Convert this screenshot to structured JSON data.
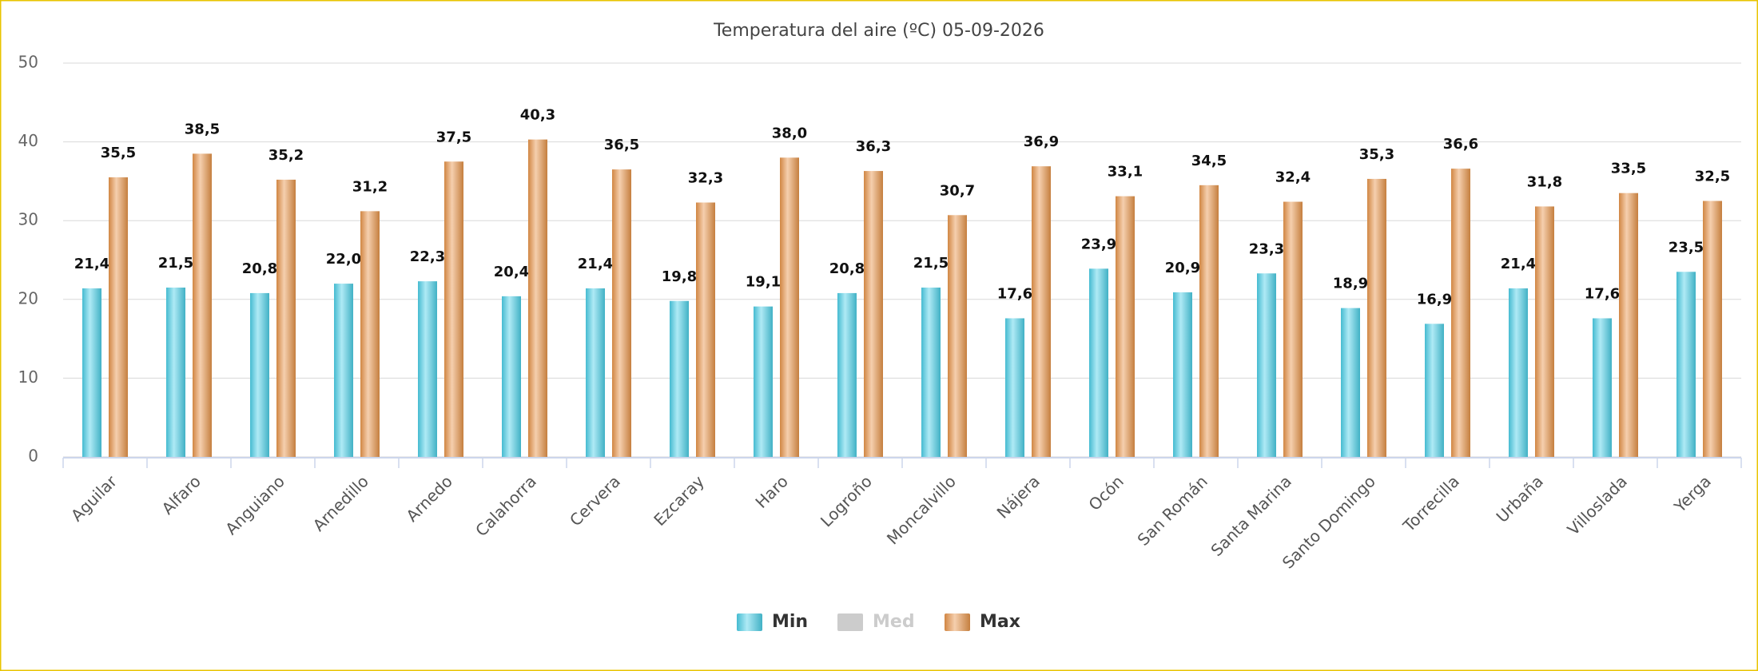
{
  "chart_data": {
    "type": "bar",
    "title": "Temperatura del aire (ºC) 05-09-2026",
    "categories": [
      "Aguilar",
      "Alfaro",
      "Anguiano",
      "Arnedillo",
      "Arnedo",
      "Calahorra",
      "Cervera",
      "Ezcaray",
      "Haro",
      "Logroño",
      "Moncalvillo",
      "Nájera",
      "Ocón",
      "San Román",
      "Santa Marina",
      "Santo Domingo",
      "Torrecilla",
      "Urbaña",
      "Villoslada",
      "Yerga"
    ],
    "series": [
      {
        "name": "Min",
        "color": "#4dd0e8",
        "visible": true,
        "values": [
          21.4,
          21.5,
          20.8,
          22.0,
          22.3,
          20.4,
          21.4,
          19.8,
          19.1,
          20.8,
          21.5,
          17.6,
          23.9,
          20.9,
          23.3,
          18.9,
          16.9,
          21.4,
          17.6,
          23.5
        ],
        "value_labels": [
          "21,4",
          "21,5",
          "20,8",
          "22,0",
          "22,3",
          "20,4",
          "21,4",
          "19,8",
          "19,1",
          "20,8",
          "21,5",
          "17,6",
          "23,9",
          "20,9",
          "23,3",
          "18,9",
          "16,9",
          "21,4",
          "17,6",
          "23,5"
        ]
      },
      {
        "name": "Med",
        "color": "#cccccc",
        "visible": false,
        "values": [
          null,
          null,
          null,
          null,
          null,
          null,
          null,
          null,
          null,
          null,
          null,
          null,
          null,
          null,
          null,
          null,
          null,
          null,
          null,
          null
        ]
      },
      {
        "name": "Max",
        "color": "#e8954a",
        "visible": true,
        "values": [
          35.5,
          38.5,
          35.2,
          31.2,
          37.5,
          40.3,
          36.5,
          32.3,
          38.0,
          36.3,
          30.7,
          36.9,
          33.1,
          34.5,
          32.4,
          35.3,
          36.6,
          31.8,
          33.5,
          32.5
        ],
        "value_labels": [
          "35,5",
          "38,5",
          "35,2",
          "31,2",
          "37,5",
          "40,3",
          "36,5",
          "32,3",
          "38,0",
          "36,3",
          "30,7",
          "36,9",
          "33,1",
          "34,5",
          "32,4",
          "35,3",
          "36,6",
          "31,8",
          "33,5",
          "32,5"
        ]
      }
    ],
    "ylim": [
      0,
      50
    ],
    "yticks": [
      0,
      10,
      20,
      30,
      40,
      50
    ],
    "grid": true,
    "legend": "bottom"
  }
}
